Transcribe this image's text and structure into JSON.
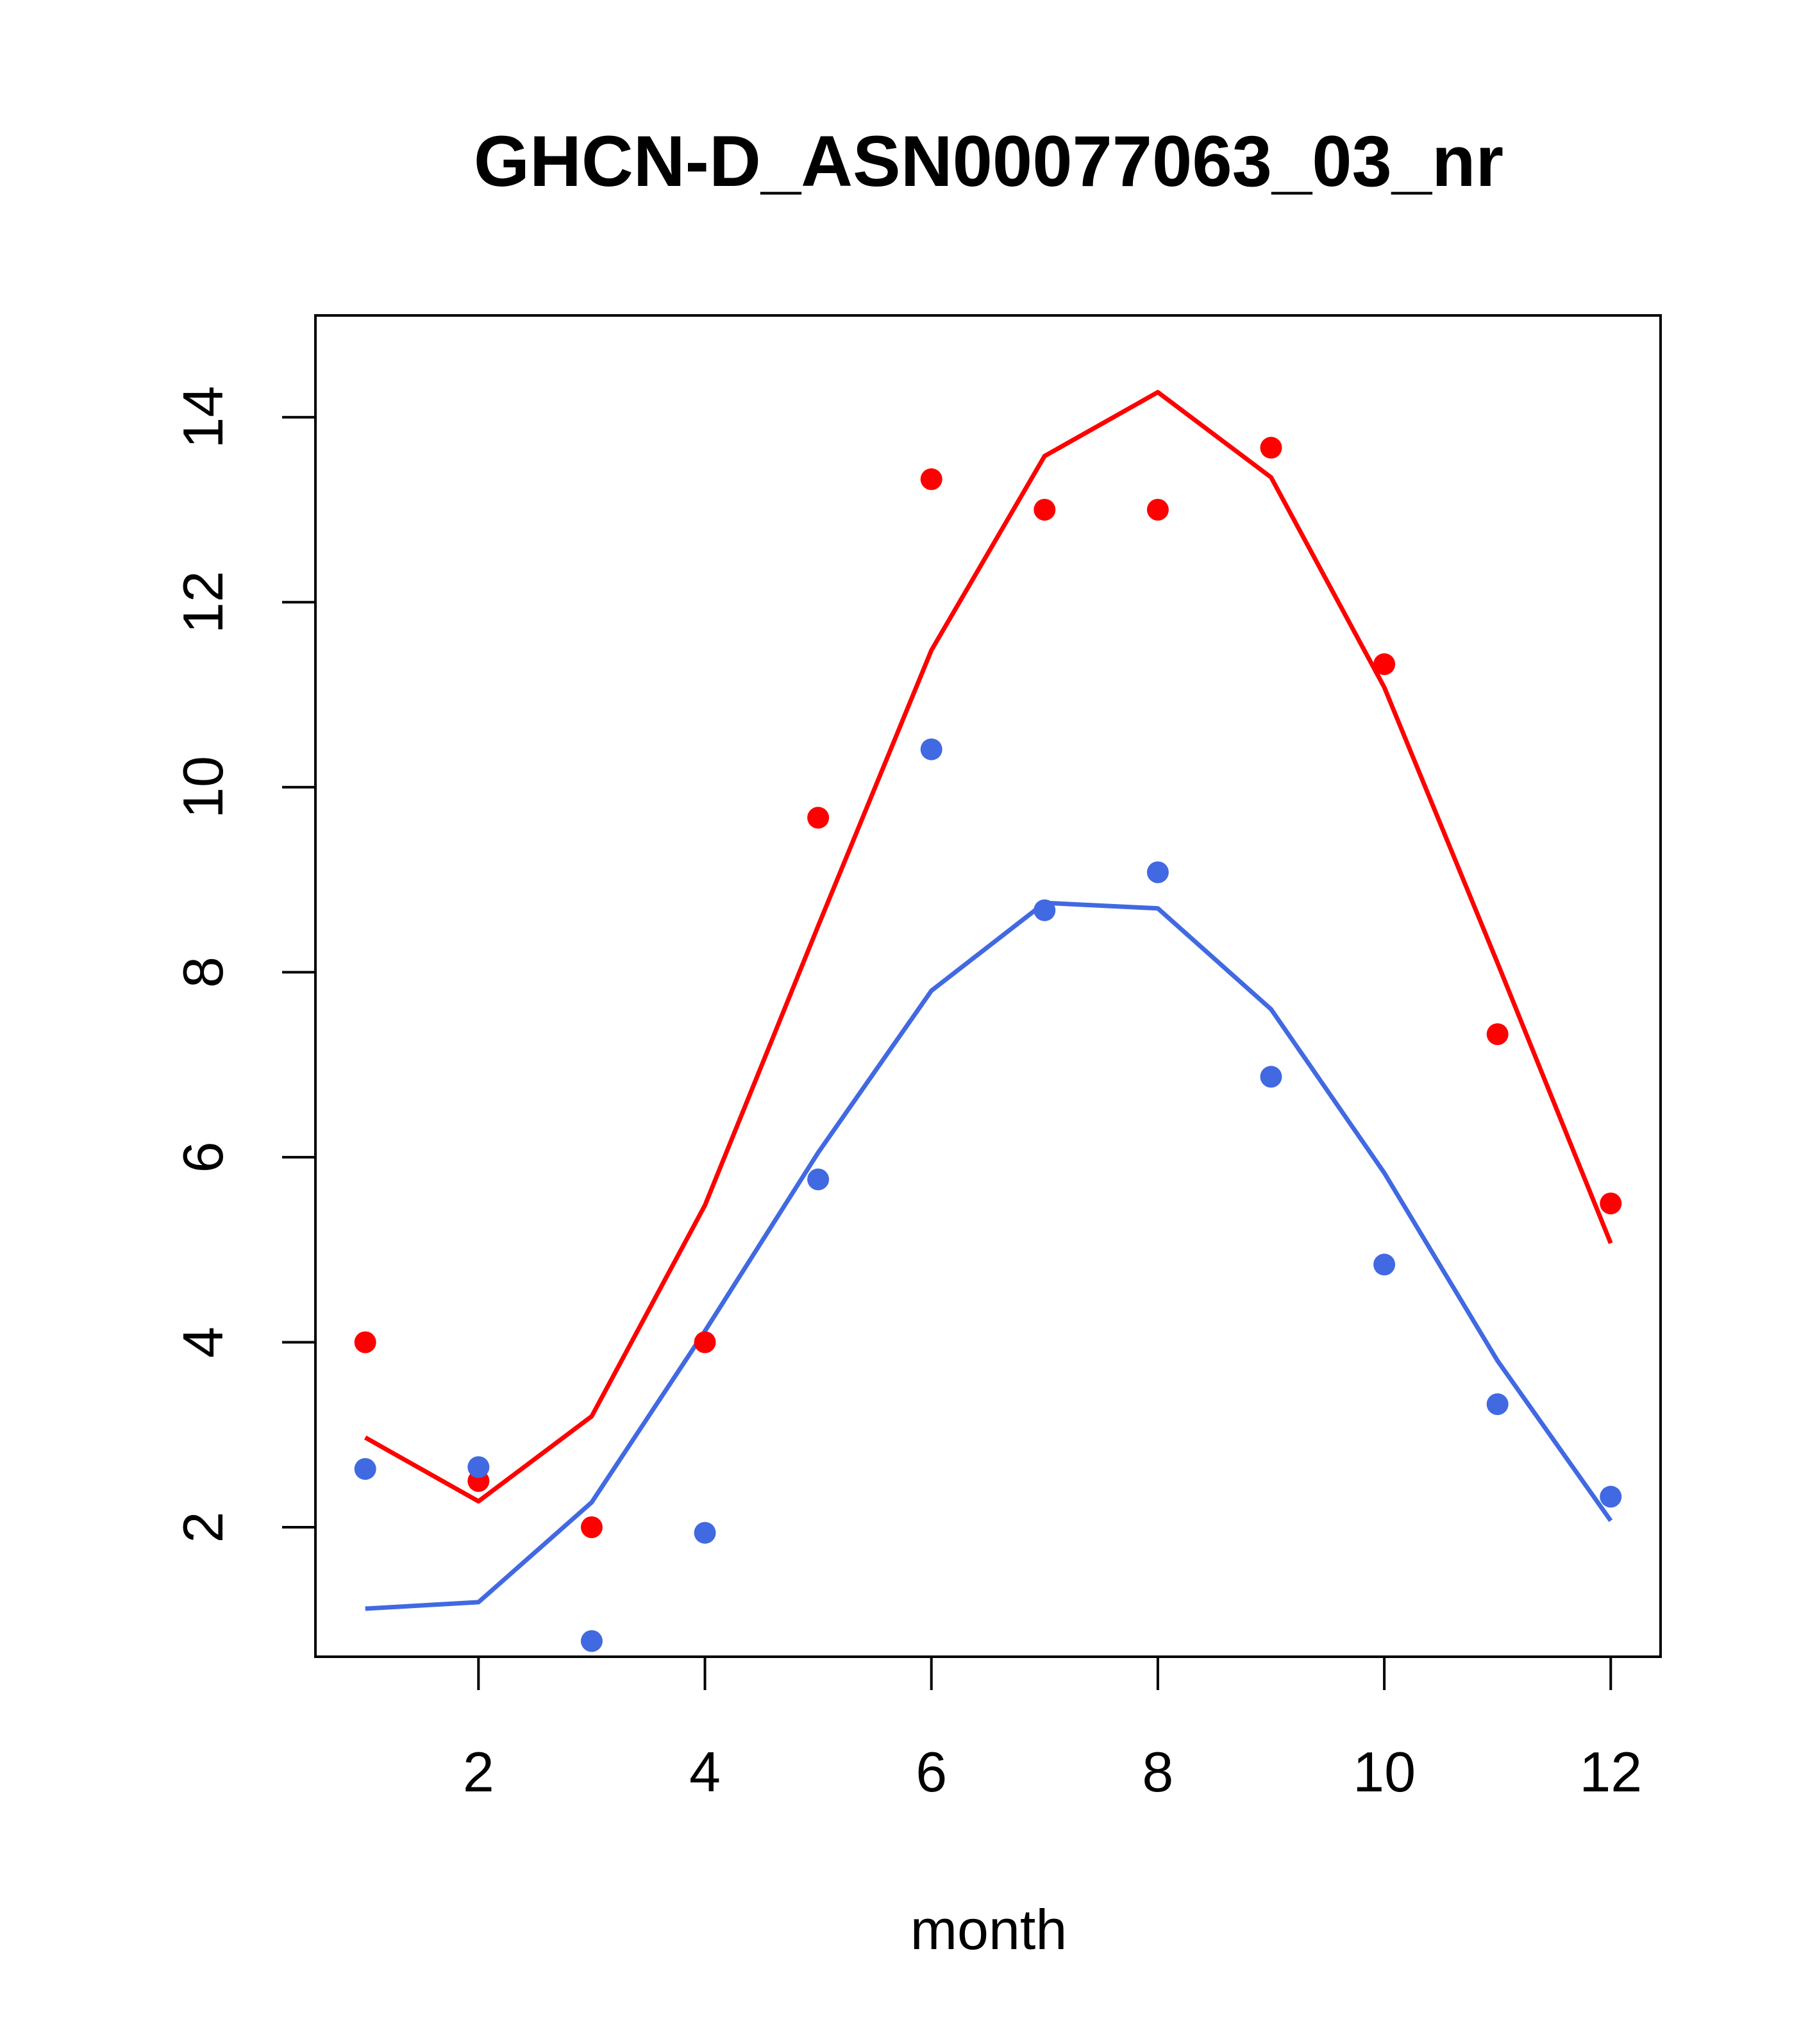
{
  "chart_data": {
    "type": "line",
    "title": "GHCN-D_ASN00077063_03_nr",
    "xlabel": "month",
    "ylabel": "",
    "xlim": [
      0.56,
      12.44
    ],
    "ylim": [
      0.6,
      15.1
    ],
    "xticks": [
      2,
      4,
      6,
      8,
      10,
      12
    ],
    "yticks": [
      2,
      4,
      6,
      8,
      10,
      12,
      14
    ],
    "grid": false,
    "x": [
      1,
      2,
      3,
      4,
      5,
      6,
      7,
      8,
      9,
      10,
      11,
      12
    ],
    "series": [
      {
        "color": "#ff0000",
        "line": [
          2.97,
          2.28,
          3.2,
          5.48,
          8.5,
          11.48,
          13.58,
          14.27,
          13.35,
          11.08,
          8.1,
          5.07
        ],
        "points": [
          4.0,
          2.5,
          2.0,
          4.0,
          9.67,
          13.33,
          13.0,
          13.0,
          13.67,
          11.33,
          7.33,
          5.5
        ]
      },
      {
        "color": "#4169e1",
        "line": [
          1.12,
          1.19,
          2.27,
          4.12,
          6.05,
          7.8,
          8.75,
          8.69,
          7.6,
          5.83,
          3.8,
          2.07
        ],
        "points": [
          2.63,
          2.65,
          0.77,
          1.94,
          5.76,
          10.41,
          8.67,
          9.08,
          6.87,
          4.84,
          3.33,
          2.33
        ]
      }
    ]
  }
}
